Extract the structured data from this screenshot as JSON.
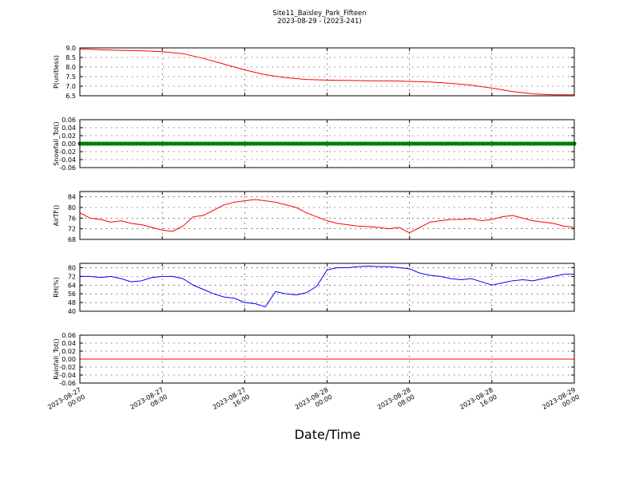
{
  "header": {
    "title": "Site11_Baisley_Park_Fifteen",
    "subtitle": "2023-08-29 - (2023-241)"
  },
  "chart_data": {
    "type": "line",
    "xlabel": "Date/Time",
    "x_range": [
      "2023-08-27 00:00",
      "2023-08-29 00:00"
    ],
    "x_ticks": [
      "2023-08-27\n00:00",
      "2023-08-27\n08:00",
      "2023-08-27\n16:00",
      "2023-08-28\n00:00",
      "2023-08-28\n08:00",
      "2023-08-28\n16:00",
      "2023-08-29\n00:00"
    ],
    "grid": true,
    "panels": [
      {
        "ylabel": "P(unitless)",
        "ylim": [
          6.5,
          9.0
        ],
        "yticks": [
          "9.0",
          "8.5",
          "8.0",
          "7.5",
          "7.0",
          "6.5"
        ],
        "series": [
          {
            "color": "#ff0000",
            "x_hours": [
              0,
              2,
              4,
              6,
              8,
              10,
              12,
              14,
              16,
              18,
              20,
              22,
              24,
              26,
              28,
              30,
              32,
              34,
              36,
              38,
              40,
              42,
              44,
              46,
              48
            ],
            "values": [
              8.95,
              8.9,
              8.87,
              8.85,
              8.8,
              8.7,
              8.45,
              8.15,
              7.85,
              7.6,
              7.45,
              7.35,
              7.32,
              7.3,
              7.28,
              7.28,
              7.25,
              7.22,
              7.15,
              7.05,
              6.9,
              6.72,
              6.6,
              6.55,
              6.55
            ]
          }
        ]
      },
      {
        "ylabel": "Snowfall_Tot()",
        "ylim": [
          -0.06,
          0.06
        ],
        "yticks": [
          "0.06",
          "0.04",
          "0.02",
          "0.00",
          "-0.02",
          "-0.04",
          "-0.06"
        ],
        "series": [
          {
            "color": "#008000",
            "markers": true,
            "x_hours": [
              0,
              48
            ],
            "values": [
              0,
              0
            ]
          }
        ]
      },
      {
        "ylabel": "AirTF()",
        "ylim": [
          68,
          86
        ],
        "yticks": [
          "84",
          "80",
          "76",
          "72",
          "68"
        ],
        "series": [
          {
            "color": "#ff0000",
            "x_hours": [
              0,
              1,
              2,
              3,
              4,
              5,
              6,
              7,
              8,
              9,
              10,
              11,
              12,
              13,
              14,
              15,
              16,
              17,
              18,
              19,
              20,
              21,
              22,
              23,
              24,
              25,
              26,
              27,
              28,
              29,
              30,
              31,
              32,
              33,
              34,
              35,
              36,
              37,
              38,
              39,
              40,
              41,
              42,
              43,
              44,
              45,
              46,
              47,
              48
            ],
            "values": [
              78,
              76,
              75.5,
              74.5,
              75,
              74,
              73.5,
              72.5,
              71.5,
              71,
              73,
              76.5,
              77,
              79,
              81,
              82,
              82.5,
              83,
              82.5,
              82,
              81,
              80,
              78,
              76.5,
              75,
              74,
              73.5,
              73,
              72.8,
              72.5,
              72,
              72.5,
              70.5,
              72.5,
              74.5,
              75,
              75.5,
              75.5,
              75.8,
              75,
              75.5,
              76.5,
              77,
              76,
              75,
              74.5,
              74,
              73,
              72.5
            ]
          }
        ]
      },
      {
        "ylabel": "RH(%)",
        "ylim": [
          40,
          84
        ],
        "yticks": [
          "80",
          "72",
          "64",
          "56",
          "48",
          "40"
        ],
        "series": [
          {
            "color": "#0000ff",
            "x_hours": [
              0,
              1,
              2,
              3,
              4,
              5,
              6,
              7,
              8,
              9,
              10,
              11,
              12,
              13,
              14,
              15,
              16,
              17,
              18,
              19,
              20,
              21,
              22,
              23,
              24,
              25,
              26,
              27,
              28,
              29,
              30,
              31,
              32,
              33,
              34,
              35,
              36,
              37,
              38,
              39,
              40,
              41,
              42,
              43,
              44,
              45,
              46,
              47,
              48
            ],
            "values": [
              72,
              72,
              71,
              72,
              70,
              67,
              68,
              71,
              72,
              72,
              70,
              64,
              60,
              56,
              53,
              52,
              48,
              47,
              44,
              58,
              56,
              55,
              57,
              63,
              78,
              80,
              80,
              81,
              81.5,
              81,
              81,
              80,
              79,
              75,
              73,
              72,
              70,
              69,
              70,
              67,
              64,
              66,
              68,
              69,
              68,
              70,
              72,
              74,
              74
            ]
          }
        ]
      },
      {
        "ylabel": "Rainfall_Tot()",
        "ylim": [
          -0.06,
          0.06
        ],
        "yticks": [
          "0.06",
          "0.04",
          "0.02",
          "0.00",
          "-0.02",
          "-0.04",
          "-0.06"
        ],
        "series": [
          {
            "color": "#ff0000",
            "x_hours": [
              0,
              48
            ],
            "values": [
              0,
              0
            ]
          }
        ]
      }
    ]
  }
}
